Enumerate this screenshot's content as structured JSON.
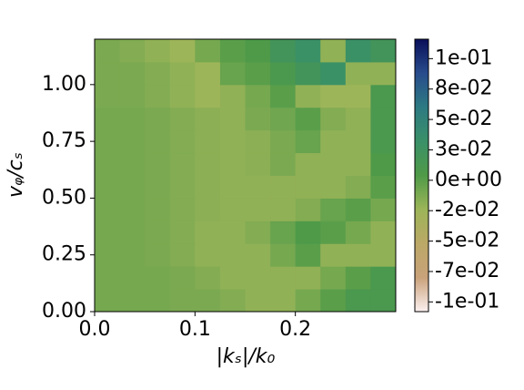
{
  "chart_data": {
    "type": "heatmap",
    "xlabel": "|kₛ|/k₀",
    "ylabel": "vᵩ/cₛ",
    "x": [
      0,
      0.025,
      0.05,
      0.075,
      0.1,
      0.125,
      0.15,
      0.175,
      0.2,
      0.225,
      0.25,
      0.275,
      0.3
    ],
    "y": [
      0,
      0.1,
      0.2,
      0.3,
      0.4,
      0.5,
      0.6,
      0.7,
      0.8,
      0.9,
      1.0,
      1.1,
      1.2
    ],
    "z": [
      [
        -0.01,
        -0.01,
        -0.01,
        -0.012,
        -0.012,
        -0.015,
        -0.02,
        -0.02,
        -0.01,
        0.0,
        0.01,
        0.01
      ],
      [
        -0.01,
        -0.01,
        -0.01,
        -0.012,
        -0.015,
        -0.02,
        -0.02,
        -0.02,
        -0.02,
        -0.01,
        0.0,
        0.01
      ],
      [
        -0.01,
        -0.01,
        -0.012,
        -0.015,
        -0.02,
        -0.02,
        -0.02,
        -0.01,
        0.0,
        -0.02,
        -0.02,
        -0.02
      ],
      [
        -0.01,
        -0.01,
        -0.012,
        -0.015,
        -0.02,
        -0.02,
        -0.015,
        -0.005,
        0.005,
        0.0,
        -0.01,
        -0.02
      ],
      [
        -0.01,
        -0.01,
        -0.012,
        -0.015,
        -0.018,
        -0.02,
        -0.02,
        -0.02,
        -0.015,
        -0.005,
        0.0,
        -0.01
      ],
      [
        -0.01,
        -0.01,
        -0.012,
        -0.015,
        -0.018,
        -0.02,
        -0.02,
        -0.02,
        -0.02,
        -0.02,
        -0.015,
        0.0
      ],
      [
        -0.01,
        -0.01,
        -0.012,
        -0.015,
        -0.018,
        -0.02,
        -0.018,
        -0.012,
        -0.02,
        -0.02,
        -0.02,
        0.005
      ],
      [
        -0.01,
        -0.01,
        -0.012,
        -0.015,
        -0.018,
        -0.02,
        -0.018,
        -0.012,
        -0.005,
        -0.02,
        -0.02,
        0.01
      ],
      [
        -0.01,
        -0.01,
        -0.012,
        -0.015,
        -0.018,
        -0.02,
        -0.012,
        -0.008,
        0.0,
        -0.015,
        -0.02,
        0.01
      ],
      [
        -0.012,
        -0.012,
        -0.015,
        -0.02,
        -0.025,
        -0.02,
        -0.01,
        0.0,
        -0.02,
        -0.025,
        -0.025,
        0.01
      ],
      [
        -0.012,
        -0.012,
        -0.015,
        -0.02,
        -0.025,
        -0.005,
        0.0,
        0.01,
        0.02,
        0.03,
        -0.02,
        -0.02
      ],
      [
        -0.012,
        -0.015,
        -0.02,
        -0.025,
        -0.01,
        0.0,
        0.005,
        0.02,
        0.03,
        -0.02,
        0.03,
        0.02
      ]
    ],
    "xlim": [
      0,
      0.3
    ],
    "ylim": [
      0,
      1.2
    ],
    "xticks": [
      {
        "value": 0,
        "label": "0.0"
      },
      0.1,
      0.2
    ],
    "yticks": [
      {
        "value": 0,
        "label": "0.00"
      },
      {
        "value": 0.25,
        "label": "0.25"
      },
      {
        "value": 0.5,
        "label": "0.50"
      },
      {
        "value": 0.75,
        "label": "0.75"
      },
      {
        "value": 1.0,
        "label": "1.00"
      }
    ],
    "clim": [
      -0.108,
      0.116
    ],
    "cticks": [
      {
        "value": -0.1,
        "label": "-1e-01"
      },
      {
        "value": -0.075,
        "label": "-7e-02"
      },
      {
        "value": -0.05,
        "label": "-5e-02"
      },
      {
        "value": -0.025,
        "label": "-2e-02"
      },
      {
        "value": 0,
        "label": "0e+00"
      },
      {
        "value": 0.025,
        "label": "3e-02"
      },
      {
        "value": 0.05,
        "label": "5e-02"
      },
      {
        "value": 0.075,
        "label": "8e-02"
      },
      {
        "value": 0.1,
        "label": "1e-01"
      }
    ],
    "colormap": [
      "#fcf0f0",
      "#c9a27a",
      "#bba866",
      "#9cb558",
      "#4f9a48",
      "#3a9068",
      "#2d7a82",
      "#284c8c",
      "#0a0f5a"
    ]
  }
}
